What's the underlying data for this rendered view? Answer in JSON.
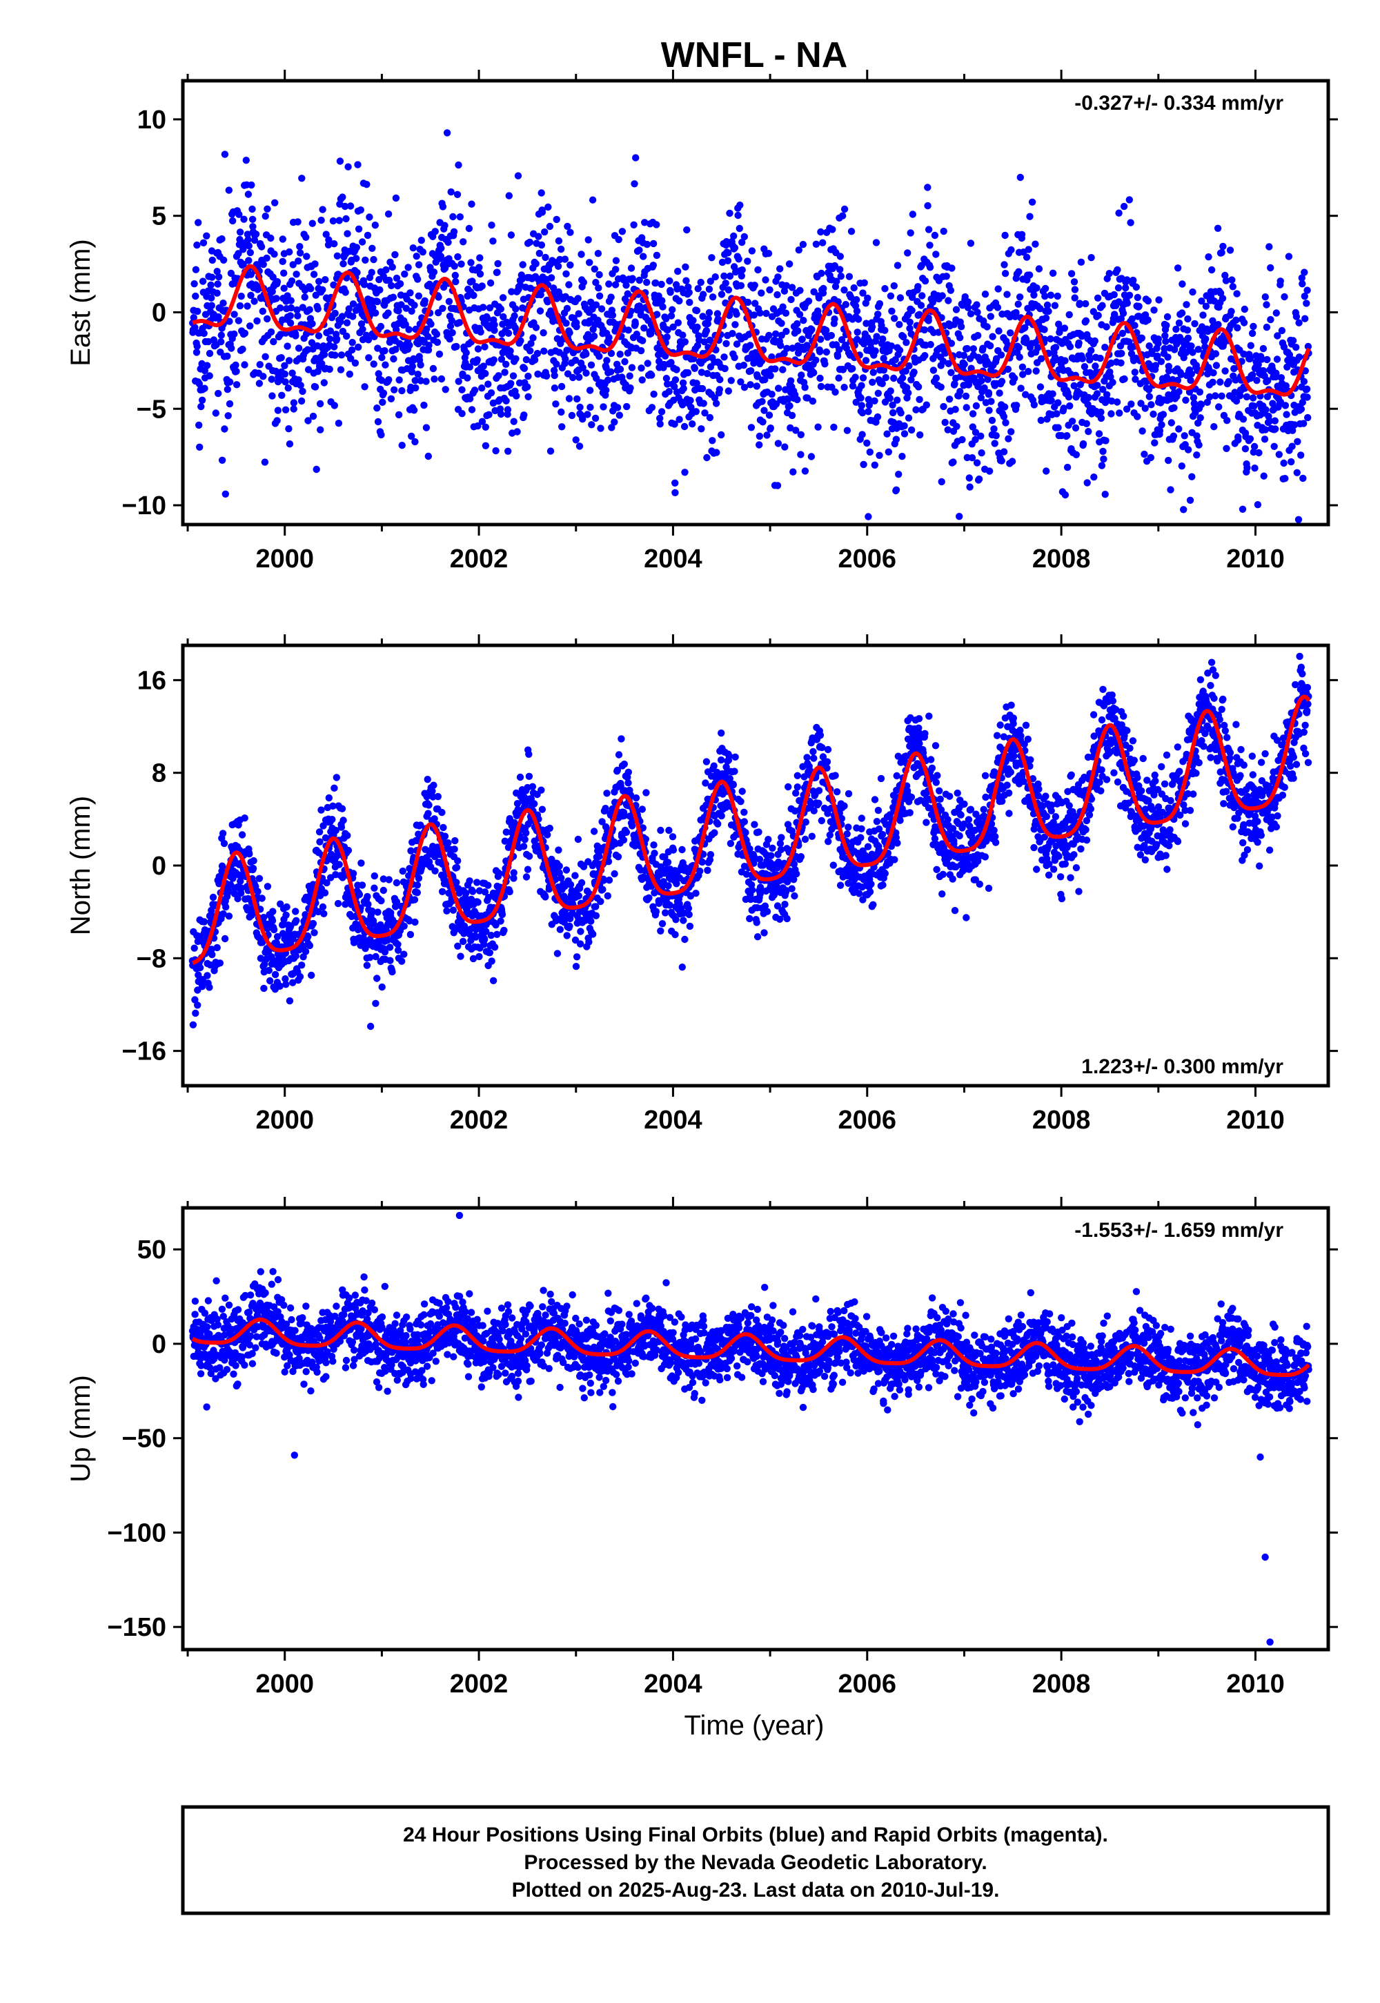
{
  "title": "WNFL - NA",
  "xlabel": "Time (year)",
  "colors": {
    "points": "#0000ff",
    "fit": "#ff0000",
    "axes": "#000000"
  },
  "footer": {
    "line1": "24 Hour Positions Using Final Orbits (blue) and Rapid Orbits (magenta).",
    "line2": "Processed by the Nevada Geodetic Laboratory.",
    "line3": "Plotted on 2025-Aug-23. Last data on 2010-Jul-19."
  },
  "chart_data": [
    {
      "type": "scatter",
      "component": "east",
      "ylabel": "East (mm)",
      "rate_label": "-0.327+/- 0.334 mm/yr",
      "xlim": [
        1998.95,
        2010.75
      ],
      "ylim": [
        -11,
        12
      ],
      "x_ticks": [
        2000,
        2002,
        2004,
        2006,
        2008,
        2010
      ],
      "y_ticks": [
        -10,
        -5,
        0,
        5,
        10
      ],
      "y_tick_labels": [
        "−10",
        "−5",
        "0",
        "5",
        "10"
      ],
      "data_range": [
        1999.05,
        2010.55
      ],
      "model": {
        "offset": 0.5,
        "rate": -0.327,
        "annual_amp": 1.5,
        "annual_phase_peak": 0.65,
        "semi_amp": 0.6,
        "noise_sd": 2.6
      },
      "series": [
        {
          "marker": "points",
          "n_points": 3300
        },
        {
          "marker": "fit-line"
        }
      ]
    },
    {
      "type": "scatter",
      "component": "north",
      "ylabel": "North (mm)",
      "rate_label": "1.223+/- 0.300 mm/yr",
      "xlim": [
        1998.95,
        2010.75
      ],
      "ylim": [
        -19,
        19
      ],
      "x_ticks": [
        2000,
        2002,
        2004,
        2006,
        2008,
        2010
      ],
      "y_ticks": [
        -16,
        -8,
        0,
        8,
        16
      ],
      "y_tick_labels": [
        "−16",
        "−8",
        "0",
        "8",
        "16"
      ],
      "data_range": [
        1999.05,
        2010.55
      ],
      "model": {
        "offset": -5.0,
        "rate": 1.223,
        "annual_amp": 4.5,
        "annual_phase_peak": 0.5,
        "semi_amp": 1.0,
        "noise_sd": 2.0
      },
      "series": [
        {
          "marker": "points",
          "n_points": 3300
        },
        {
          "marker": "fit-line"
        }
      ]
    },
    {
      "type": "scatter",
      "component": "up",
      "ylabel": "Up (mm)",
      "rate_label": "-1.553+/- 1.659 mm/yr",
      "xlim": [
        1998.95,
        2010.75
      ],
      "ylim": [
        -162,
        72
      ],
      "x_ticks": [
        2000,
        2002,
        2004,
        2006,
        2008,
        2010
      ],
      "y_ticks": [
        -150,
        -100,
        -50,
        0,
        50
      ],
      "y_tick_labels": [
        "−150",
        "−100",
        "−50",
        "0",
        "50"
      ],
      "data_range": [
        1999.05,
        2010.55
      ],
      "model": {
        "offset": 6.0,
        "rate": -1.553,
        "annual_amp": 6.5,
        "annual_phase_peak": 0.75,
        "semi_amp": 1.5,
        "noise_sd": 9.5
      },
      "outliers": [
        [
          2000.1,
          -59
        ],
        [
          2001.8,
          68
        ],
        [
          2010.1,
          -113
        ],
        [
          2010.15,
          -158
        ],
        [
          2010.05,
          -60
        ]
      ],
      "series": [
        {
          "marker": "points",
          "n_points": 3300
        },
        {
          "marker": "fit-line"
        }
      ]
    }
  ]
}
